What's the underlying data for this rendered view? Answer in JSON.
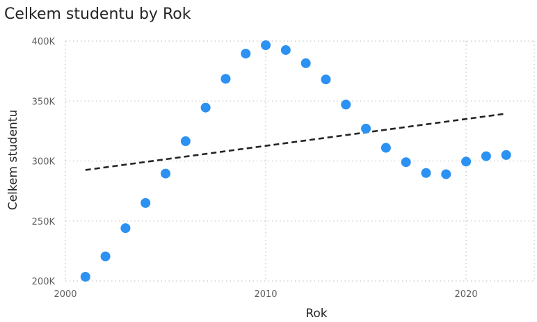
{
  "chart_data": {
    "type": "scatter",
    "title": "Celkem studentu by Rok",
    "xlabel": "Rok",
    "ylabel": "Celkem studentu",
    "xlim": [
      2000,
      2023.4
    ],
    "ylim": [
      200000,
      400000
    ],
    "x_ticks": [
      2000,
      2010,
      2020
    ],
    "x_tick_labels": [
      "2000",
      "2010",
      "2020"
    ],
    "y_ticks": [
      200000,
      250000,
      300000,
      350000,
      400000
    ],
    "y_tick_labels": [
      "200K",
      "250K",
      "300K",
      "350K",
      "400K"
    ],
    "grid": true,
    "points": [
      {
        "x": 2001,
        "y": 203500
      },
      {
        "x": 2002,
        "y": 220500
      },
      {
        "x": 2003,
        "y": 244000
      },
      {
        "x": 2004,
        "y": 265000
      },
      {
        "x": 2005,
        "y": 289500
      },
      {
        "x": 2006,
        "y": 316500
      },
      {
        "x": 2007,
        "y": 344500
      },
      {
        "x": 2008,
        "y": 368500
      },
      {
        "x": 2009,
        "y": 389500
      },
      {
        "x": 2010,
        "y": 396500
      },
      {
        "x": 2011,
        "y": 392500
      },
      {
        "x": 2012,
        "y": 381500
      },
      {
        "x": 2013,
        "y": 368000
      },
      {
        "x": 2014,
        "y": 347000
      },
      {
        "x": 2015,
        "y": 327000
      },
      {
        "x": 2016,
        "y": 311000
      },
      {
        "x": 2017,
        "y": 299000
      },
      {
        "x": 2018,
        "y": 290000
      },
      {
        "x": 2019,
        "y": 289000
      },
      {
        "x": 2020,
        "y": 299500
      },
      {
        "x": 2021,
        "y": 304000
      },
      {
        "x": 2022,
        "y": 305000
      }
    ],
    "trend_line": {
      "style": "dashed",
      "x": [
        2001,
        2022
      ],
      "y": [
        292500,
        339500
      ]
    },
    "colors": {
      "points": "#2b91f2",
      "trend": "#252423",
      "grid": "#c8c6c4"
    }
  }
}
